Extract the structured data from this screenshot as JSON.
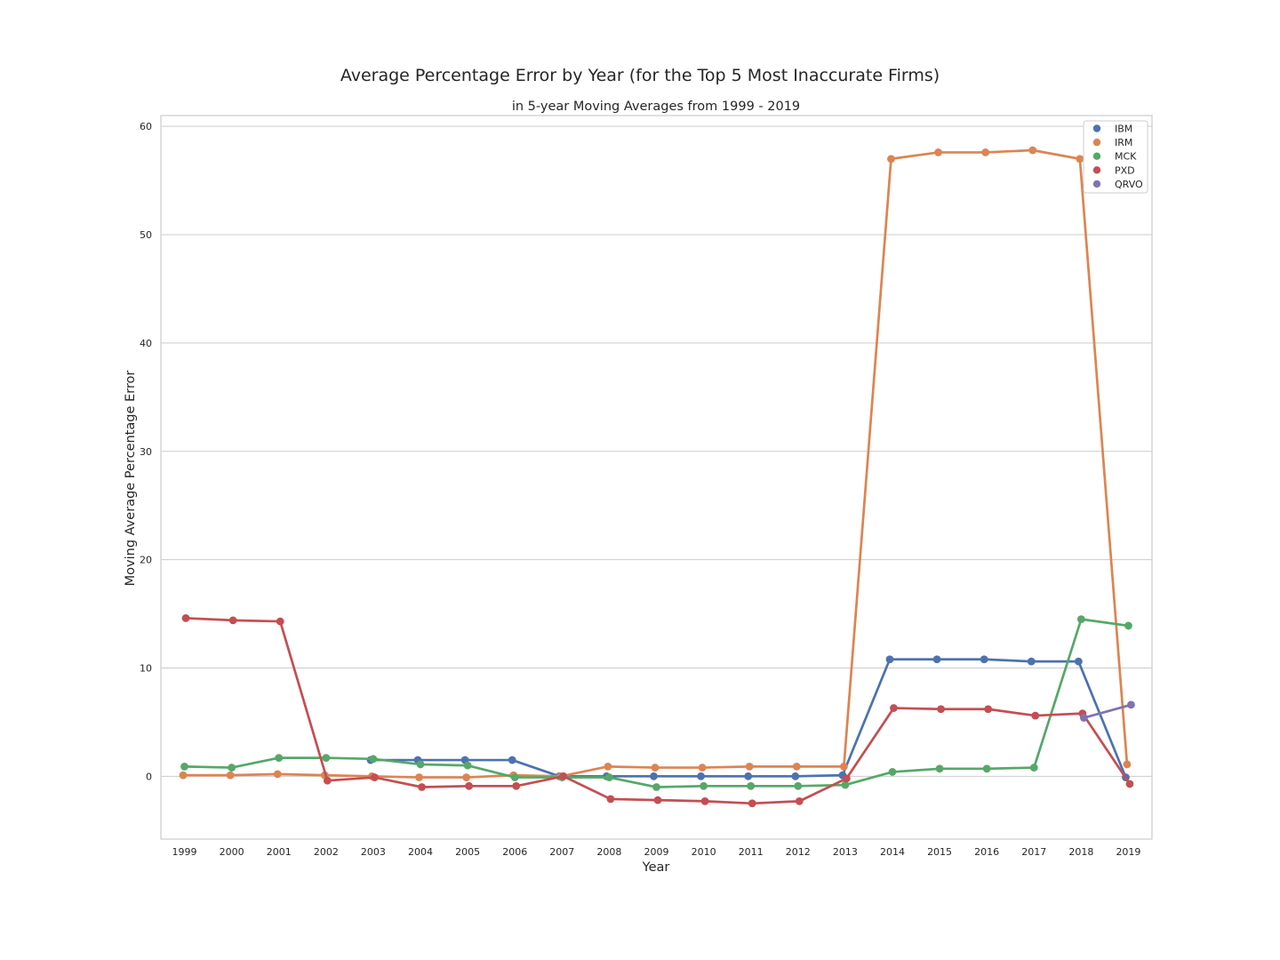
{
  "chart_data": {
    "type": "line",
    "title": "Average Percentage Error by Year (for the Top 5 Most Inaccurate Firms)",
    "subtitle": "in 5-year Moving Averages from 1999 - 2019",
    "xlabel": "Year",
    "ylabel": "Moving Average Percentage Error",
    "categories": [
      "1999",
      "2000",
      "2001",
      "2002",
      "2003",
      "2004",
      "2005",
      "2006",
      "2007",
      "2008",
      "2009",
      "2010",
      "2011",
      "2012",
      "2013",
      "2014",
      "2015",
      "2016",
      "2017",
      "2018",
      "2019"
    ],
    "yticks": [
      0,
      10,
      20,
      30,
      40,
      50,
      60
    ],
    "ylim": [
      -5.8,
      61.0
    ],
    "grid": true,
    "legend_position": "top-right",
    "series": [
      {
        "name": "IBM",
        "color": "#4c72b0",
        "values": [
          null,
          null,
          null,
          null,
          1.5,
          1.5,
          1.5,
          1.5,
          0.0,
          0.0,
          0.0,
          0.0,
          0.0,
          0.0,
          0.1,
          10.8,
          10.8,
          10.8,
          10.6,
          10.6,
          -0.1
        ]
      },
      {
        "name": "IRM",
        "color": "#dd8452",
        "values": [
          0.1,
          0.1,
          0.2,
          0.1,
          0.0,
          -0.1,
          -0.1,
          0.1,
          0.0,
          0.9,
          0.8,
          0.8,
          0.9,
          0.9,
          0.9,
          57.0,
          57.6,
          57.6,
          57.8,
          57.0,
          1.1
        ]
      },
      {
        "name": "MCK",
        "color": "#55a868",
        "values": [
          0.9,
          0.8,
          1.7,
          1.7,
          1.6,
          1.1,
          1.0,
          -0.1,
          -0.1,
          -0.1,
          -1.0,
          -0.9,
          -0.9,
          -0.9,
          -0.8,
          0.4,
          0.7,
          0.7,
          0.8,
          14.5,
          13.9
        ]
      },
      {
        "name": "PXD",
        "color": "#c44e52",
        "values": [
          14.6,
          14.4,
          14.3,
          -0.4,
          -0.1,
          -1.0,
          -0.9,
          -0.9,
          0.0,
          -2.1,
          -2.2,
          -2.3,
          -2.5,
          -2.3,
          -0.2,
          6.3,
          6.2,
          6.2,
          5.6,
          5.8,
          -0.7
        ]
      },
      {
        "name": "QRVO",
        "color": "#8172b3",
        "values": [
          null,
          null,
          null,
          null,
          null,
          null,
          null,
          null,
          null,
          null,
          null,
          null,
          null,
          null,
          null,
          null,
          null,
          null,
          null,
          5.4,
          6.6
        ]
      }
    ]
  }
}
